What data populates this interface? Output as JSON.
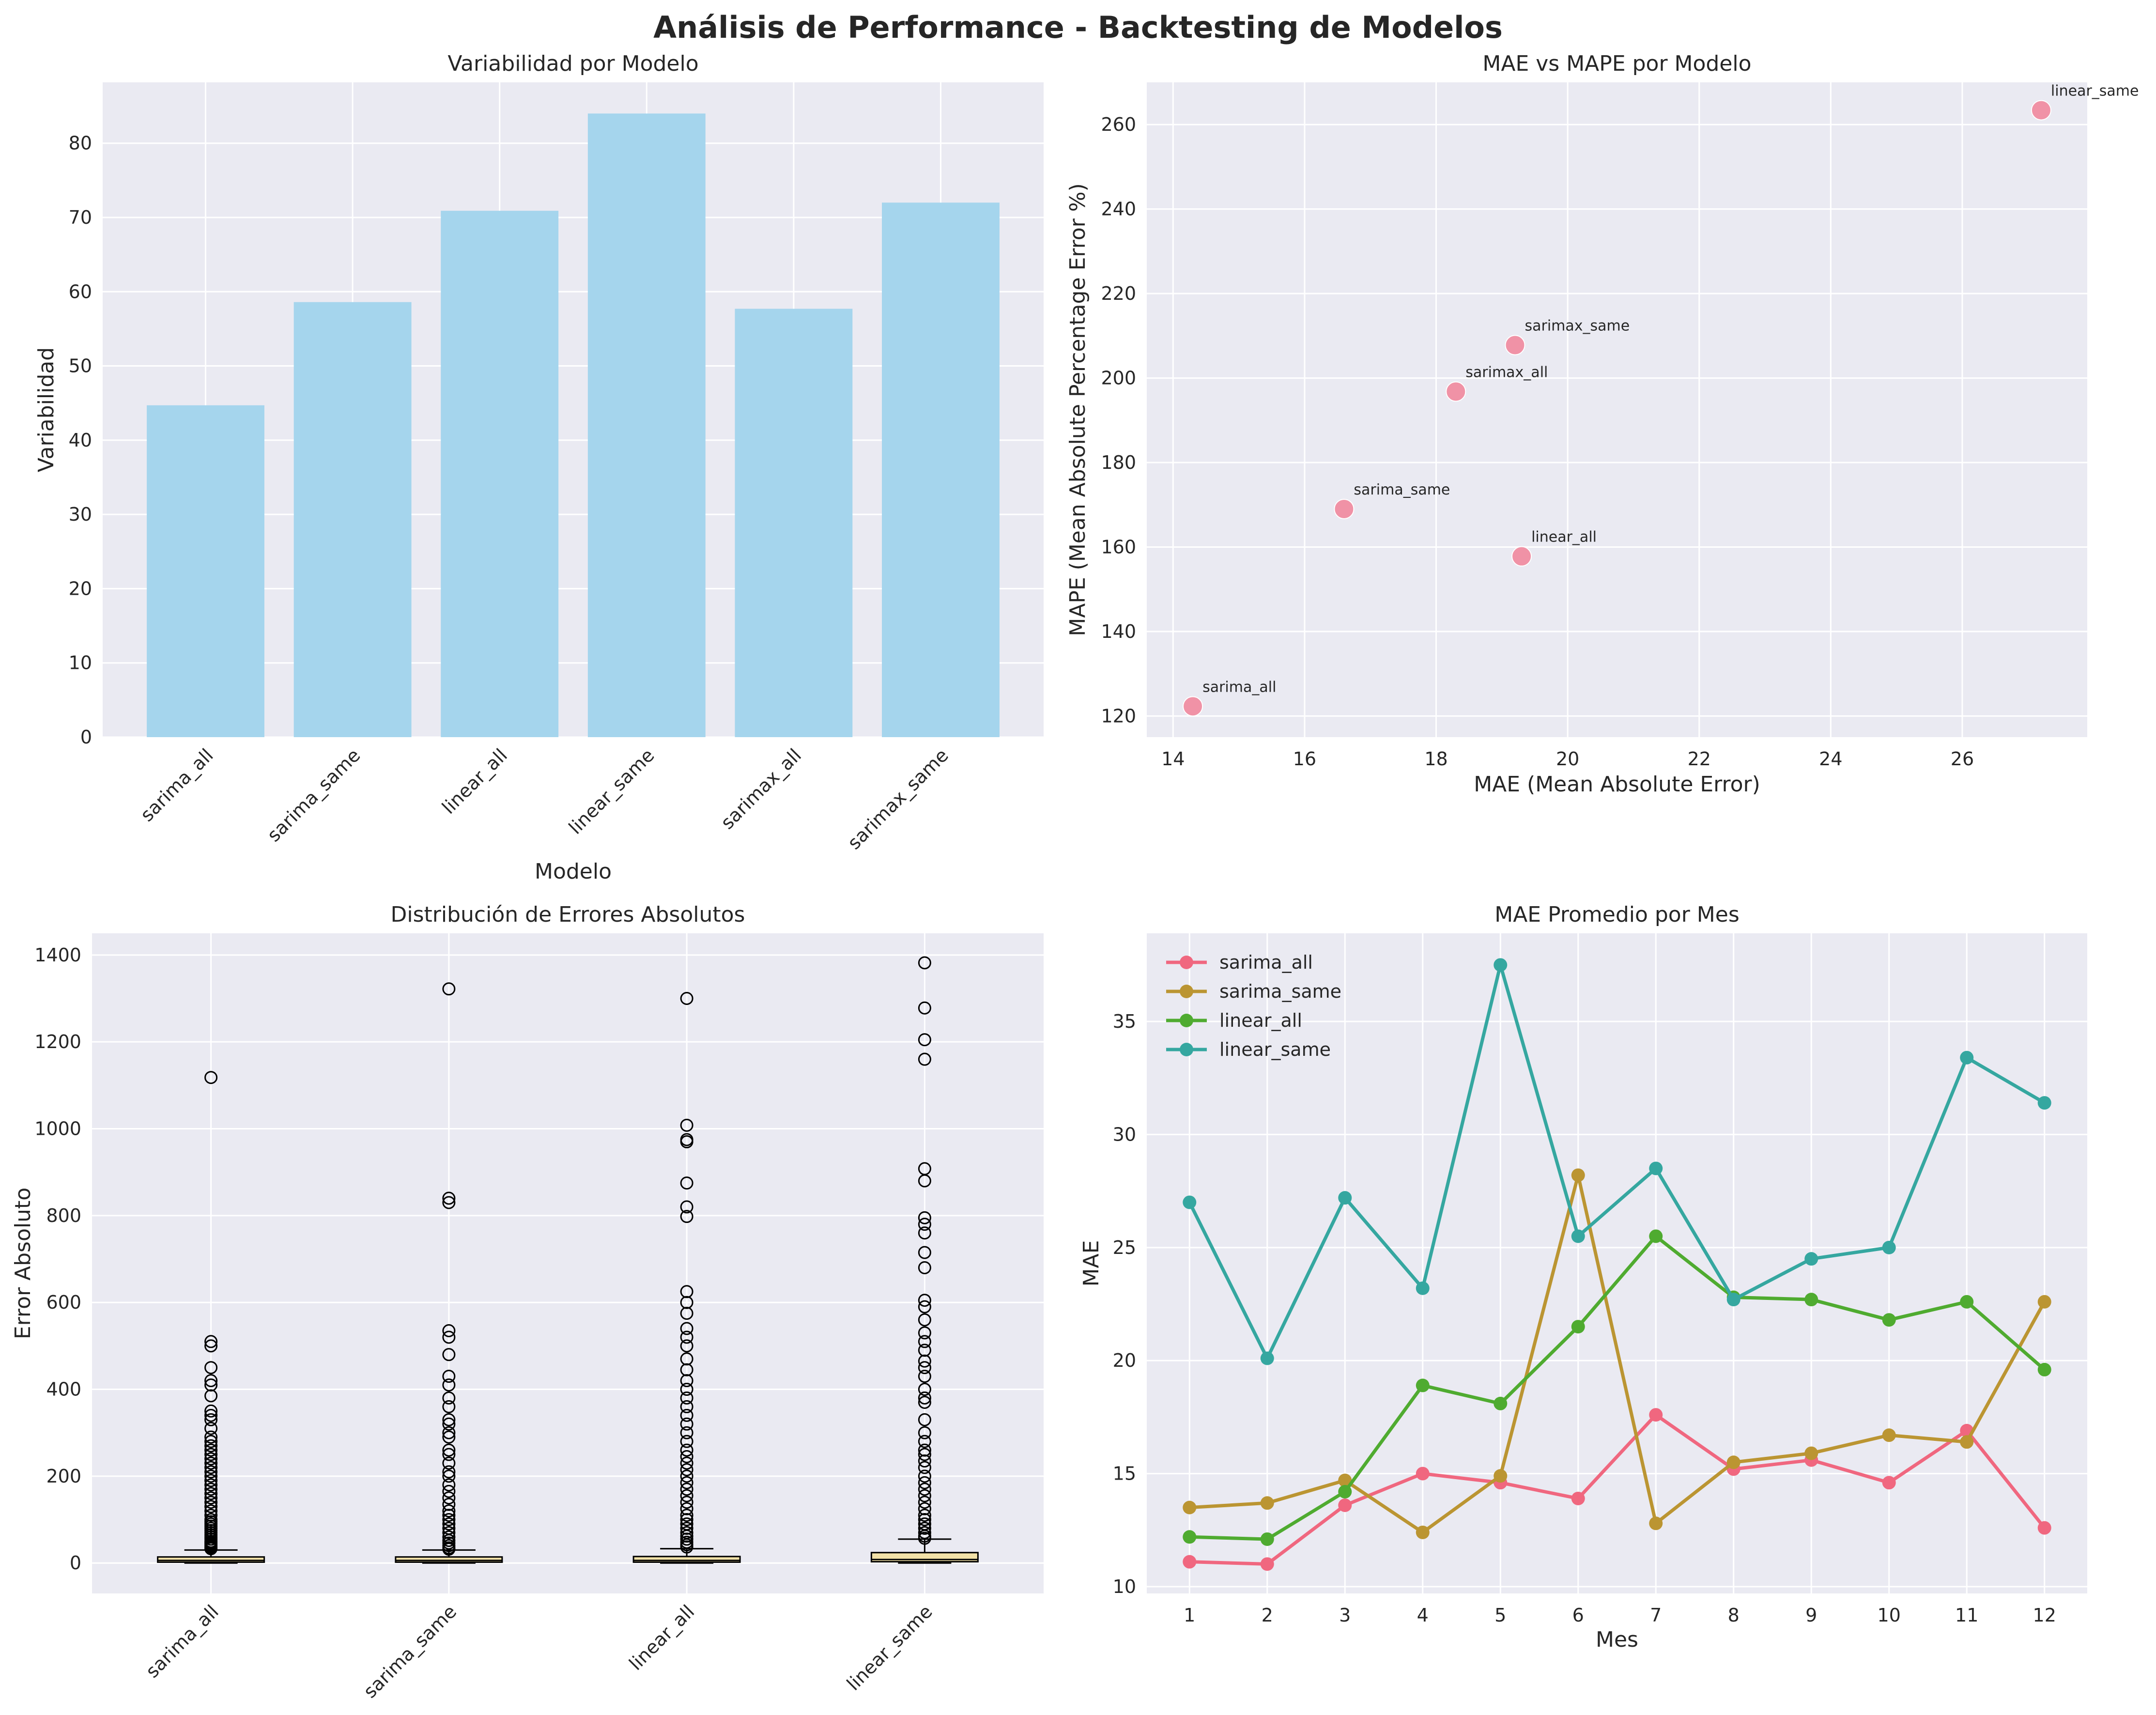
{
  "suptitle": "Análisis de Performance - Backtesting de Modelos",
  "colors": {
    "panel_bg": "#eaeaf2",
    "grid": "#ffffff",
    "bar": "#a5d5ed",
    "scatter": "#f08aa0",
    "box_face": "#f3e2a8",
    "series": [
      "#f0677f",
      "#bb9532",
      "#4fab30",
      "#35a7a0"
    ]
  },
  "chart_data": [
    {
      "type": "bar",
      "title": "Variabilidad por Modelo",
      "xlabel": "Modelo",
      "ylabel": "Variabilidad",
      "categories": [
        "sarima_all",
        "sarima_same",
        "linear_all",
        "linear_same",
        "sarimax_all",
        "sarimax_same"
      ],
      "values": [
        44.7,
        58.6,
        70.9,
        84.0,
        57.7,
        72.0
      ],
      "ylim": [
        0,
        88.2
      ],
      "yticks": [
        0,
        10,
        20,
        30,
        40,
        50,
        60,
        70,
        80
      ],
      "grid": true
    },
    {
      "type": "scatter",
      "title": "MAE vs MAPE por Modelo",
      "xlabel": "MAE (Mean Absolute Error)",
      "ylabel": "MAPE (Mean Absolute Percentage Error %)",
      "points": [
        {
          "label": "sarima_all",
          "x": 14.3,
          "y": 122.3
        },
        {
          "label": "sarima_same",
          "x": 16.6,
          "y": 169.0
        },
        {
          "label": "linear_all",
          "x": 19.3,
          "y": 157.8
        },
        {
          "label": "linear_same",
          "x": 27.2,
          "y": 263.4
        },
        {
          "label": "sarimax_all",
          "x": 18.3,
          "y": 196.8
        },
        {
          "label": "sarimax_same",
          "x": 19.2,
          "y": 207.8
        }
      ],
      "xlim": [
        13.6,
        27.9
      ],
      "ylim": [
        115,
        270
      ],
      "xticks": [
        14,
        16,
        18,
        20,
        22,
        24,
        26
      ],
      "yticks": [
        120,
        140,
        160,
        180,
        200,
        220,
        240,
        260
      ],
      "grid": true
    },
    {
      "type": "box",
      "title": "Distribución de Errores Absolutos",
      "xlabel": "",
      "ylabel": "Error Absoluto",
      "categories": [
        "sarima_all",
        "sarima_same",
        "linear_all",
        "linear_same"
      ],
      "boxes": [
        {
          "q1": 2,
          "median": 6,
          "q3": 14,
          "whisker_low": 0,
          "whisker_high": 30,
          "outliers": [
            1118,
            510,
            500,
            450,
            420,
            410,
            385,
            350,
            340,
            330,
            310,
            290,
            280,
            270,
            260,
            250,
            240,
            230,
            220,
            210,
            200,
            190,
            180,
            170,
            160,
            150,
            140,
            130,
            120,
            110,
            100,
            95,
            90,
            85,
            80,
            75,
            70,
            65,
            60,
            55,
            50,
            47,
            44,
            41,
            38,
            35,
            33
          ]
        },
        {
          "q1": 2,
          "median": 6,
          "q3": 14,
          "whisker_low": 0,
          "whisker_high": 30,
          "outliers": [
            1322,
            840,
            830,
            535,
            520,
            480,
            430,
            410,
            380,
            360,
            330,
            320,
            300,
            290,
            260,
            250,
            230,
            210,
            200,
            180,
            165,
            150,
            135,
            120,
            110,
            100,
            90,
            80,
            70,
            60,
            52,
            46,
            40,
            35,
            32
          ]
        },
        {
          "q1": 2,
          "median": 6,
          "q3": 15,
          "whisker_low": 0,
          "whisker_high": 33,
          "outliers": [
            1300,
            1008,
            975,
            970,
            875,
            820,
            798,
            625,
            600,
            575,
            540,
            520,
            500,
            470,
            445,
            420,
            400,
            380,
            360,
            340,
            320,
            300,
            280,
            260,
            245,
            230,
            215,
            200,
            185,
            170,
            155,
            140,
            125,
            110,
            100,
            90,
            80,
            70,
            62,
            55,
            48,
            42,
            37
          ]
        },
        {
          "q1": 3,
          "median": 8,
          "q3": 24,
          "whisker_low": 0,
          "whisker_high": 55,
          "outliers": [
            1382,
            1278,
            1205,
            1160,
            908,
            880,
            795,
            780,
            760,
            715,
            680,
            605,
            590,
            560,
            530,
            510,
            490,
            465,
            450,
            430,
            400,
            380,
            370,
            330,
            300,
            280,
            260,
            250,
            235,
            220,
            200,
            185,
            170,
            155,
            140,
            125,
            110,
            100,
            90,
            80,
            70,
            62,
            57
          ]
        }
      ],
      "ylim": [
        -70,
        1450
      ],
      "yticks": [
        0,
        200,
        400,
        600,
        800,
        1000,
        1200,
        1400
      ],
      "grid": true
    },
    {
      "type": "line",
      "title": "MAE Promedio por Mes",
      "xlabel": "Mes",
      "ylabel": "MAE",
      "x": [
        1,
        2,
        3,
        4,
        5,
        6,
        7,
        8,
        9,
        10,
        11,
        12
      ],
      "series": [
        {
          "name": "sarima_all",
          "values": [
            11.1,
            11.0,
            13.6,
            15.0,
            14.6,
            13.9,
            17.6,
            15.2,
            15.6,
            14.6,
            16.9,
            12.6
          ]
        },
        {
          "name": "sarima_same",
          "values": [
            13.5,
            13.7,
            14.7,
            12.4,
            14.9,
            28.2,
            12.8,
            15.5,
            15.9,
            16.7,
            16.4,
            22.6
          ]
        },
        {
          "name": "linear_all",
          "values": [
            12.2,
            12.1,
            14.2,
            18.9,
            18.1,
            21.5,
            25.5,
            22.8,
            22.7,
            21.8,
            22.6,
            19.6
          ]
        },
        {
          "name": "linear_same",
          "values": [
            27.0,
            20.1,
            27.2,
            23.2,
            37.5,
            25.5,
            28.5,
            22.7,
            24.5,
            25.0,
            33.4,
            31.4
          ]
        }
      ],
      "xlim": [
        0.45,
        12.55
      ],
      "ylim": [
        9.7,
        38.9
      ],
      "xticks": [
        1,
        2,
        3,
        4,
        5,
        6,
        7,
        8,
        9,
        10,
        11,
        12
      ],
      "yticks": [
        10,
        15,
        20,
        25,
        30,
        35
      ],
      "legend": "upper-left",
      "grid": true
    }
  ]
}
